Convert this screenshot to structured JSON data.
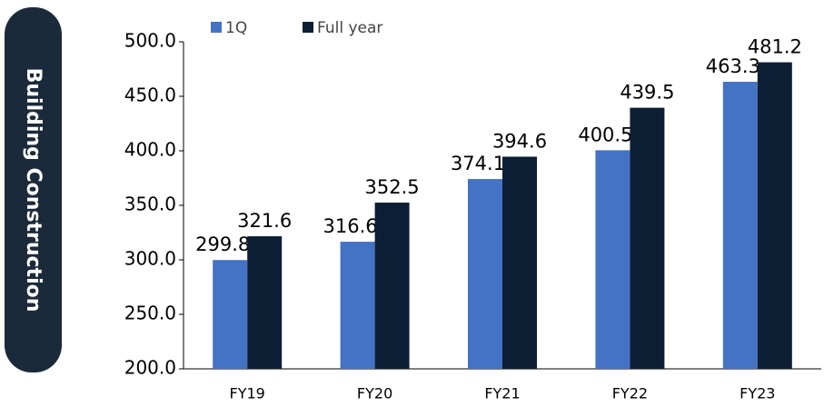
{
  "chart_data": {
    "type": "bar",
    "side_label": "Building Construction",
    "categories": [
      "FY19",
      "FY20",
      "FY21",
      "FY22",
      "FY23"
    ],
    "series": [
      {
        "name": "1Q",
        "color": "#4472c4",
        "values": [
          299.8,
          316.6,
          374.1,
          400.5,
          463.3
        ]
      },
      {
        "name": "Full year",
        "color": "#0d1f35",
        "values": [
          321.6,
          352.5,
          394.6,
          439.5,
          481.2
        ]
      }
    ],
    "ylim": [
      200,
      500
    ],
    "yticks": [
      {
        "value": 200,
        "label": "200.0"
      },
      {
        "value": 250,
        "label": "250.0"
      },
      {
        "value": 300,
        "label": "300.0"
      },
      {
        "value": 350,
        "label": "350.0"
      },
      {
        "value": 400,
        "label": "400.0"
      },
      {
        "value": 450,
        "label": "450.0"
      },
      {
        "value": 500,
        "label": "500.0"
      }
    ],
    "grid": false
  }
}
